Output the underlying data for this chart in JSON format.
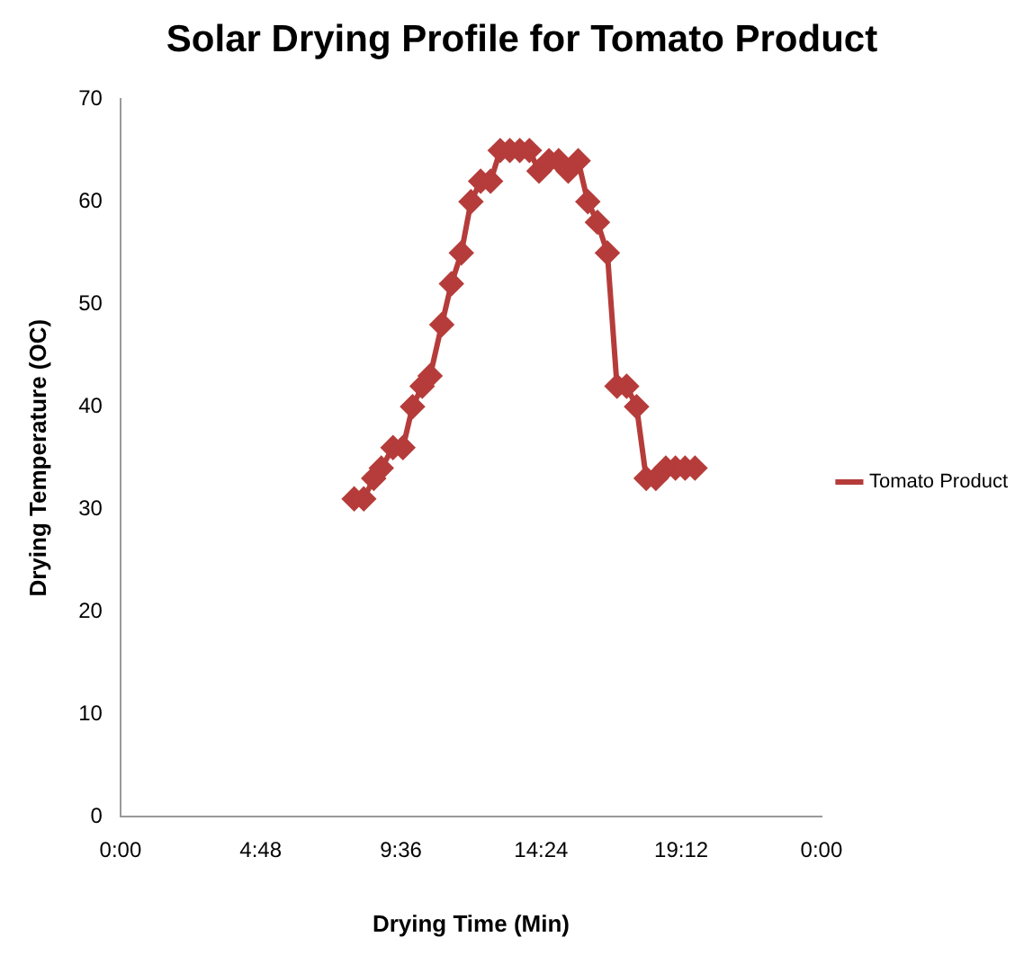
{
  "chart_data": {
    "type": "line",
    "title": "Solar Drying Profile for Tomato Product",
    "xlabel": "Drying Time (Min)",
    "ylabel": "Drying Temperature (OC)",
    "xlim": [
      0,
      24
    ],
    "xticks": [
      {
        "value": 0,
        "label": "0:00"
      },
      {
        "value": 4.8,
        "label": "4:48"
      },
      {
        "value": 9.6,
        "label": "9:36"
      },
      {
        "value": 14.4,
        "label": "14:24"
      },
      {
        "value": 19.2,
        "label": "19:12"
      },
      {
        "value": 24,
        "label": "0:00"
      }
    ],
    "ylim": [
      0,
      70
    ],
    "yticks": [
      0,
      10,
      20,
      30,
      40,
      50,
      60,
      70
    ],
    "grid": false,
    "legend": "right",
    "marker": "diamond",
    "line_style": "solid",
    "series": [
      {
        "name": "Tomato Product",
        "color": "#b53c3a",
        "x": [
          8,
          8.33,
          8.67,
          8.93,
          9.33,
          9.67,
          10,
          10.33,
          10.6,
          11,
          11.33,
          11.67,
          12,
          12.33,
          12.67,
          13,
          13.33,
          13.67,
          14,
          14.33,
          14.67,
          15,
          15.33,
          15.67,
          16,
          16.33,
          16.67,
          17,
          17.33,
          17.67,
          18,
          18.33,
          18.67,
          19,
          19.33,
          19.67
        ],
        "values": [
          31,
          31,
          33,
          34,
          36,
          36,
          40,
          42,
          43,
          48,
          52,
          55,
          60,
          62,
          62,
          65,
          65,
          65,
          65,
          63,
          64,
          64,
          63,
          64,
          60,
          58,
          55,
          42,
          42,
          40,
          33,
          33,
          34,
          34,
          34,
          34
        ]
      }
    ]
  }
}
